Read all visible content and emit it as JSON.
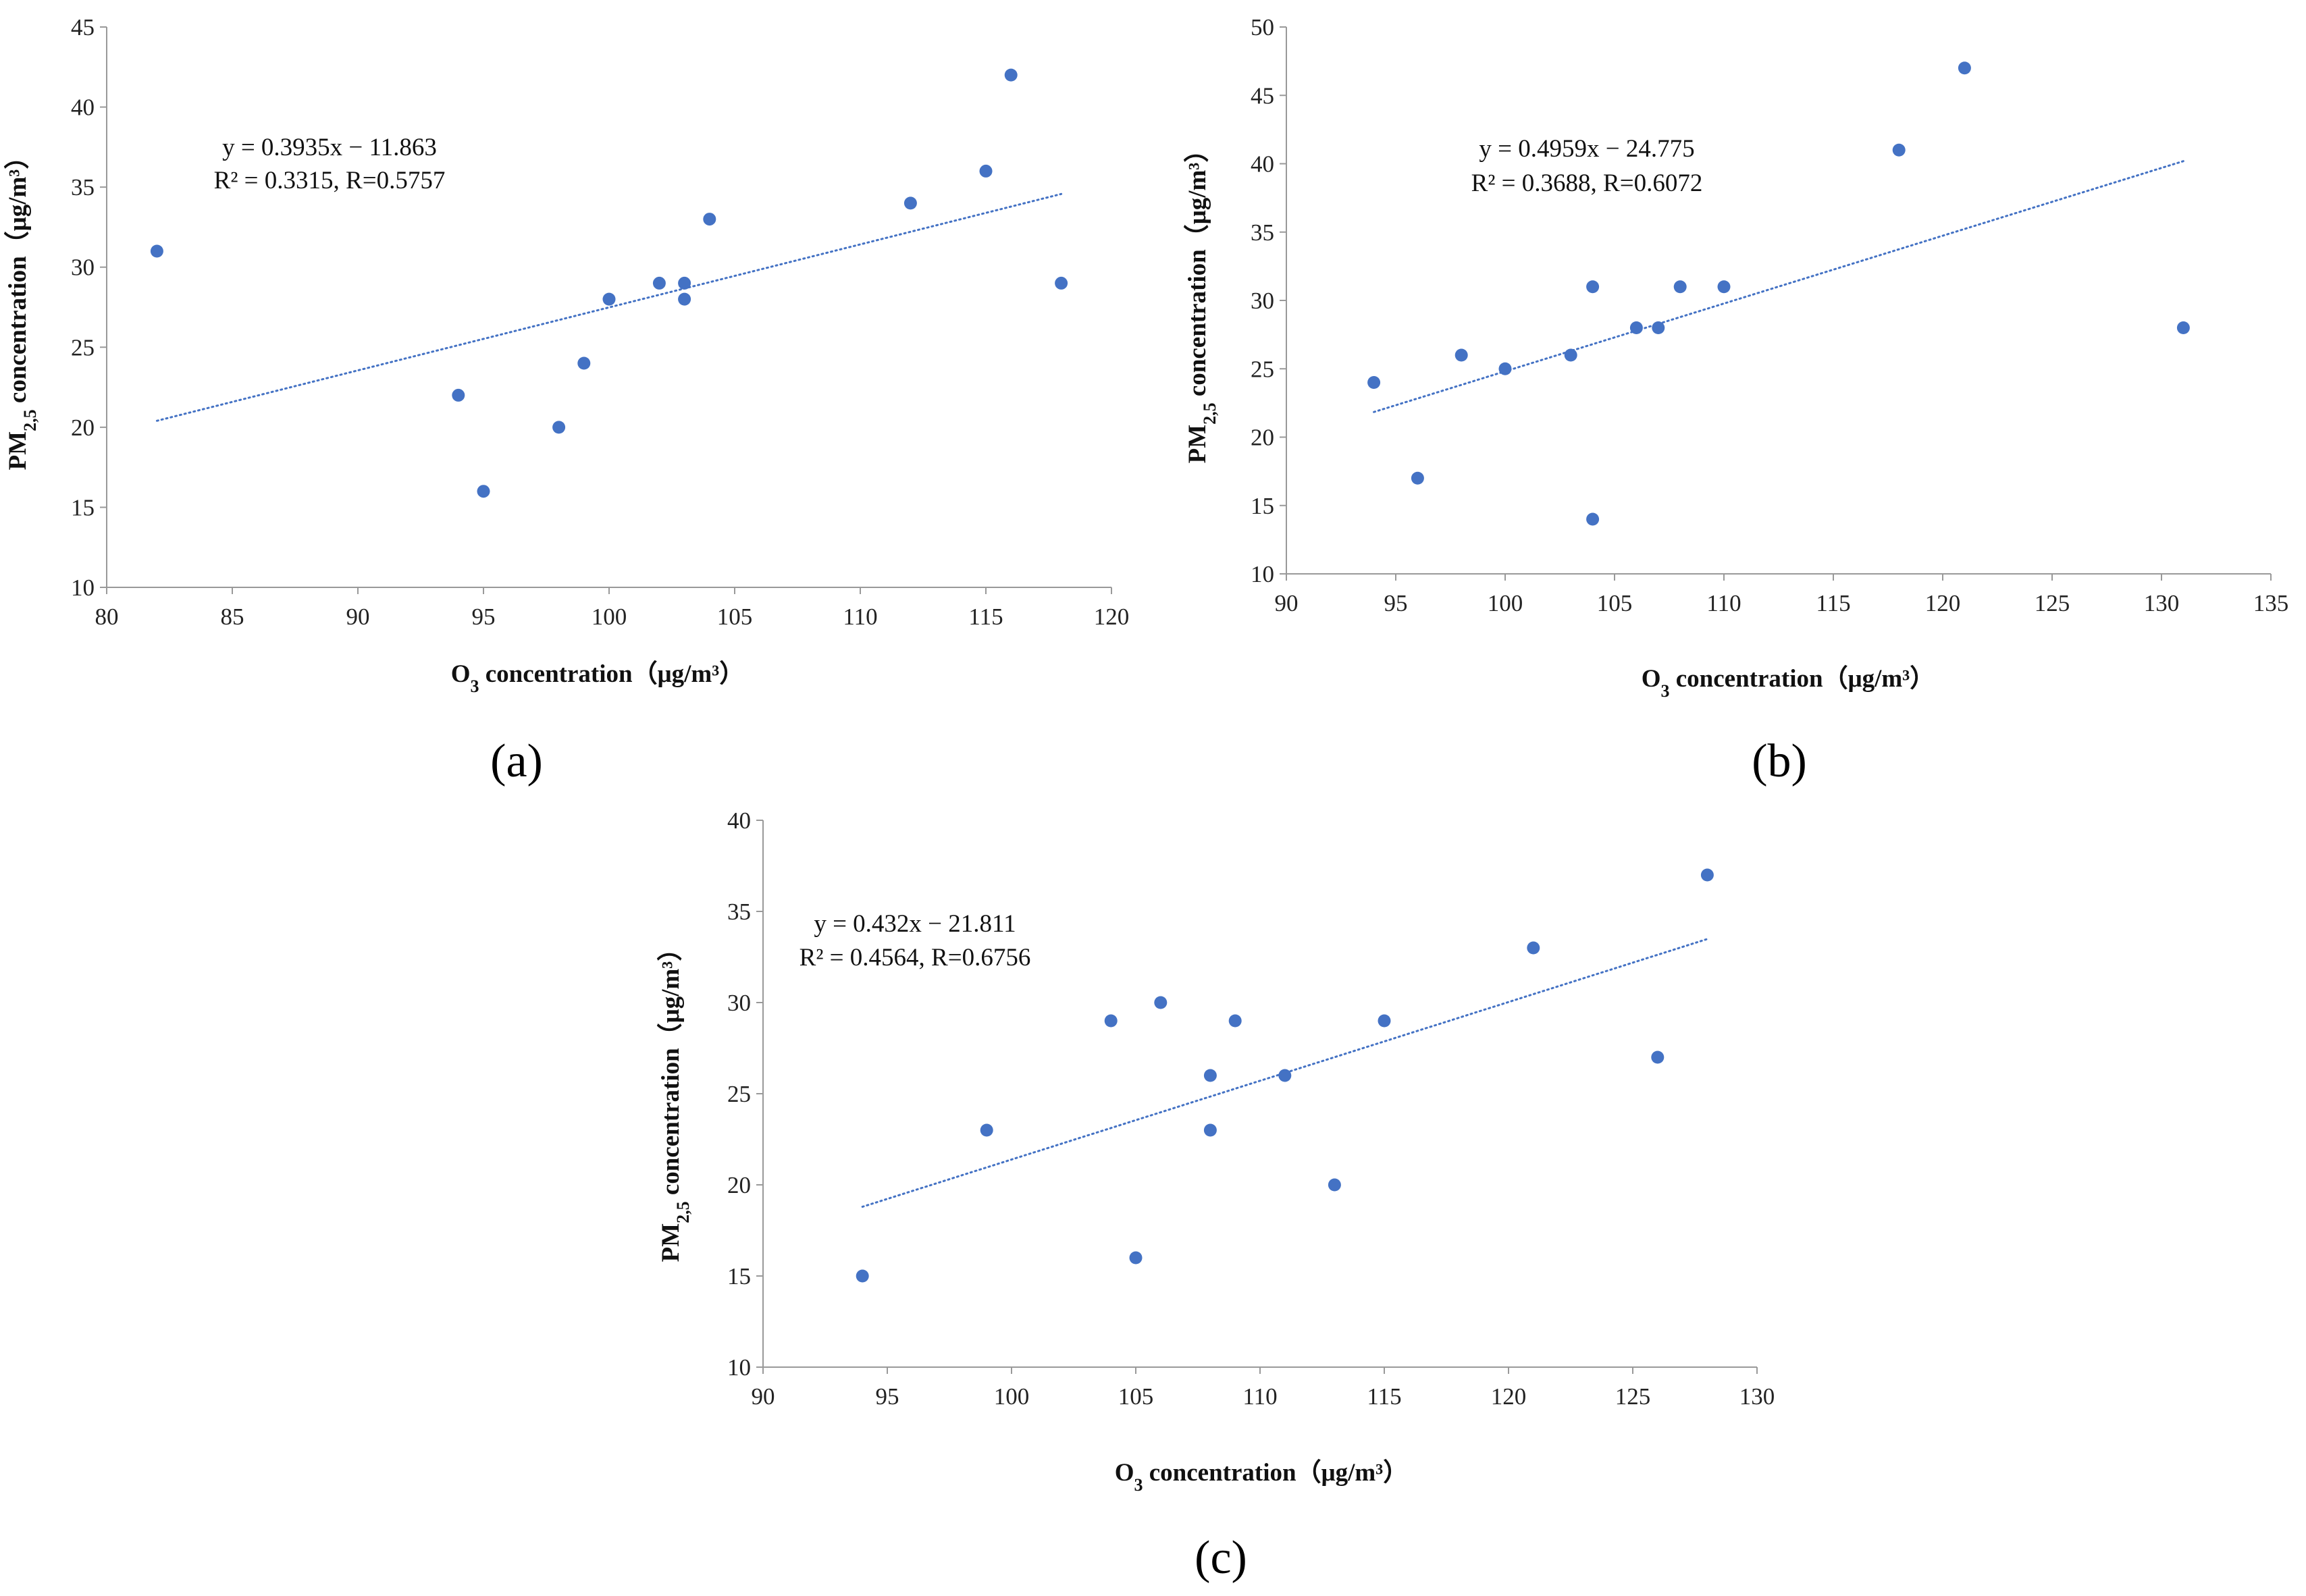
{
  "figure": {
    "colors": {
      "marker": "#4472C4",
      "trendline": "#4472C4",
      "axis": "#999999",
      "text": "#111111"
    }
  },
  "chart_data": [
    {
      "type": "scatter",
      "panel_label": "(a)",
      "xlabel": "O3 concentration（μg/m³）",
      "ylabel": "PM2.5 concentration（μg/m³）",
      "xlim": [
        80,
        120
      ],
      "ylim": [
        10,
        45
      ],
      "xticks": [
        80,
        85,
        90,
        95,
        100,
        105,
        110,
        115,
        120
      ],
      "yticks": [
        10,
        15,
        20,
        25,
        30,
        35,
        40,
        45
      ],
      "x": [
        82,
        94,
        95,
        98,
        99,
        100,
        102,
        103,
        103,
        104,
        112,
        115,
        116,
        118
      ],
      "y": [
        31,
        22,
        16,
        20,
        24,
        28,
        29,
        29,
        28,
        33,
        34,
        36,
        42,
        29
      ],
      "trendline": {
        "slope": 0.3935,
        "intercept": -11.863,
        "x_range": [
          82,
          118
        ],
        "equation": "y = 0.3935x − 11.863",
        "stats": "R² = 0.3315, R=0.5757"
      }
    },
    {
      "type": "scatter",
      "panel_label": "(b)",
      "xlabel": "O3 concentration（μg/m³）",
      "ylabel": "PM2.5 concentration（μg/m³）",
      "xlim": [
        90,
        135
      ],
      "ylim": [
        10,
        50
      ],
      "xticks": [
        90,
        95,
        100,
        105,
        110,
        115,
        120,
        125,
        130,
        135
      ],
      "yticks": [
        10,
        15,
        20,
        25,
        30,
        35,
        40,
        45,
        50
      ],
      "x": [
        94,
        96,
        98,
        100,
        103,
        104,
        104,
        106,
        107,
        108,
        110,
        118,
        121,
        131
      ],
      "y": [
        24,
        17,
        26,
        25,
        26,
        31,
        14,
        28,
        28,
        31,
        31,
        41,
        47,
        28
      ],
      "trendline": {
        "slope": 0.4959,
        "intercept": -24.775,
        "x_range": [
          94,
          131
        ],
        "equation": "y = 0.4959x − 24.775",
        "stats": "R² = 0.3688, R=0.6072"
      }
    },
    {
      "type": "scatter",
      "panel_label": "(c)",
      "xlabel": "O3 concentration（μg/m³）",
      "ylabel": "PM2.5 concentration（μg/m³）",
      "xlim": [
        90,
        130
      ],
      "ylim": [
        10,
        40
      ],
      "xticks": [
        90,
        95,
        100,
        105,
        110,
        115,
        120,
        125,
        130
      ],
      "yticks": [
        10,
        15,
        20,
        25,
        30,
        35,
        40
      ],
      "x": [
        94,
        99,
        104,
        105,
        106,
        108,
        108,
        109,
        111,
        113,
        115,
        121,
        126,
        128
      ],
      "y": [
        15,
        23,
        29,
        16,
        30,
        26,
        23,
        29,
        26,
        20,
        29,
        33,
        27,
        37
      ],
      "trendline": {
        "slope": 0.432,
        "intercept": -21.811,
        "x_range": [
          94,
          128
        ],
        "equation": "y = 0.432x − 21.811",
        "stats": "R² = 0.4564, R=0.6756"
      }
    }
  ]
}
